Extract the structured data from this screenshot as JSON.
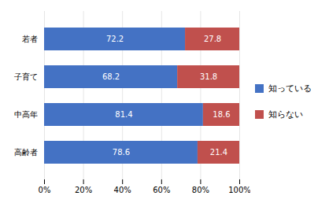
{
  "chart_data": {
    "type": "bar",
    "orientation": "horizontal",
    "stacked": true,
    "categories": [
      "若者",
      "子育て",
      "中高年",
      "高齢者"
    ],
    "series": [
      {
        "name": "知っている",
        "color": "#4472C4",
        "values": [
          72.2,
          68.2,
          81.4,
          78.6
        ]
      },
      {
        "name": "知らない",
        "color": "#C0504D",
        "values": [
          27.8,
          31.8,
          18.6,
          21.4
        ]
      }
    ],
    "xlim": [
      0,
      100
    ],
    "xticks": [
      {
        "value": 0,
        "label": "0%"
      },
      {
        "value": 20,
        "label": "20%"
      },
      {
        "value": 40,
        "label": "40%"
      },
      {
        "value": 60,
        "label": "60%"
      },
      {
        "value": 80,
        "label": "80%"
      },
      {
        "value": 100,
        "label": "100%"
      }
    ],
    "grid": true,
    "data_labels": true,
    "legend": "right"
  }
}
